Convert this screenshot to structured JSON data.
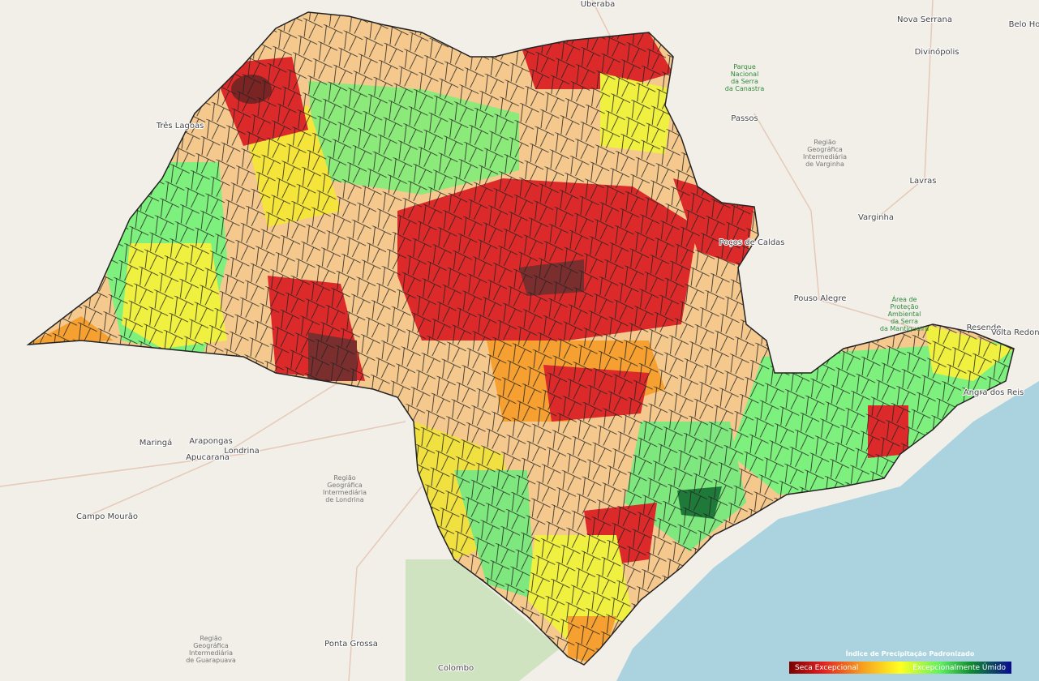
{
  "places": [
    "Uberaba",
    "Nova Serrana",
    "Divinópolis",
    "Belo Ho",
    "Passos",
    "Lavras",
    "Varginha",
    "Pouso Alegre",
    "Resende",
    "Volta Redonda",
    "Angra dos Reis",
    "Três Lagoas",
    "Londrina",
    "Maringá",
    "Arapongas",
    "Apucarana",
    "Campo Mourão",
    "Ponta Grossa",
    "Colombo",
    "Poços de Caldas"
  ],
  "regions": [
    [
      "Parque",
      "Nacional",
      "da Serra",
      "da Canastra"
    ],
    [
      "Região",
      "Geográfica",
      "Intermediária",
      "de Varginha"
    ],
    [
      "Região",
      "Geográfica",
      "Intermediária",
      "de Londrina"
    ],
    [
      "Região",
      "Geográfica",
      "Intermediária",
      "de Guarapuava"
    ],
    [
      "Área de",
      "Proteção",
      "Ambiental",
      "da Serra",
      "da Mantiqueira"
    ]
  ],
  "legend": {
    "title": "Índice de Precipitação Padronizado",
    "low_label": "Seca Excepcional",
    "high_label": "Excepcionalmente Úmido"
  }
}
